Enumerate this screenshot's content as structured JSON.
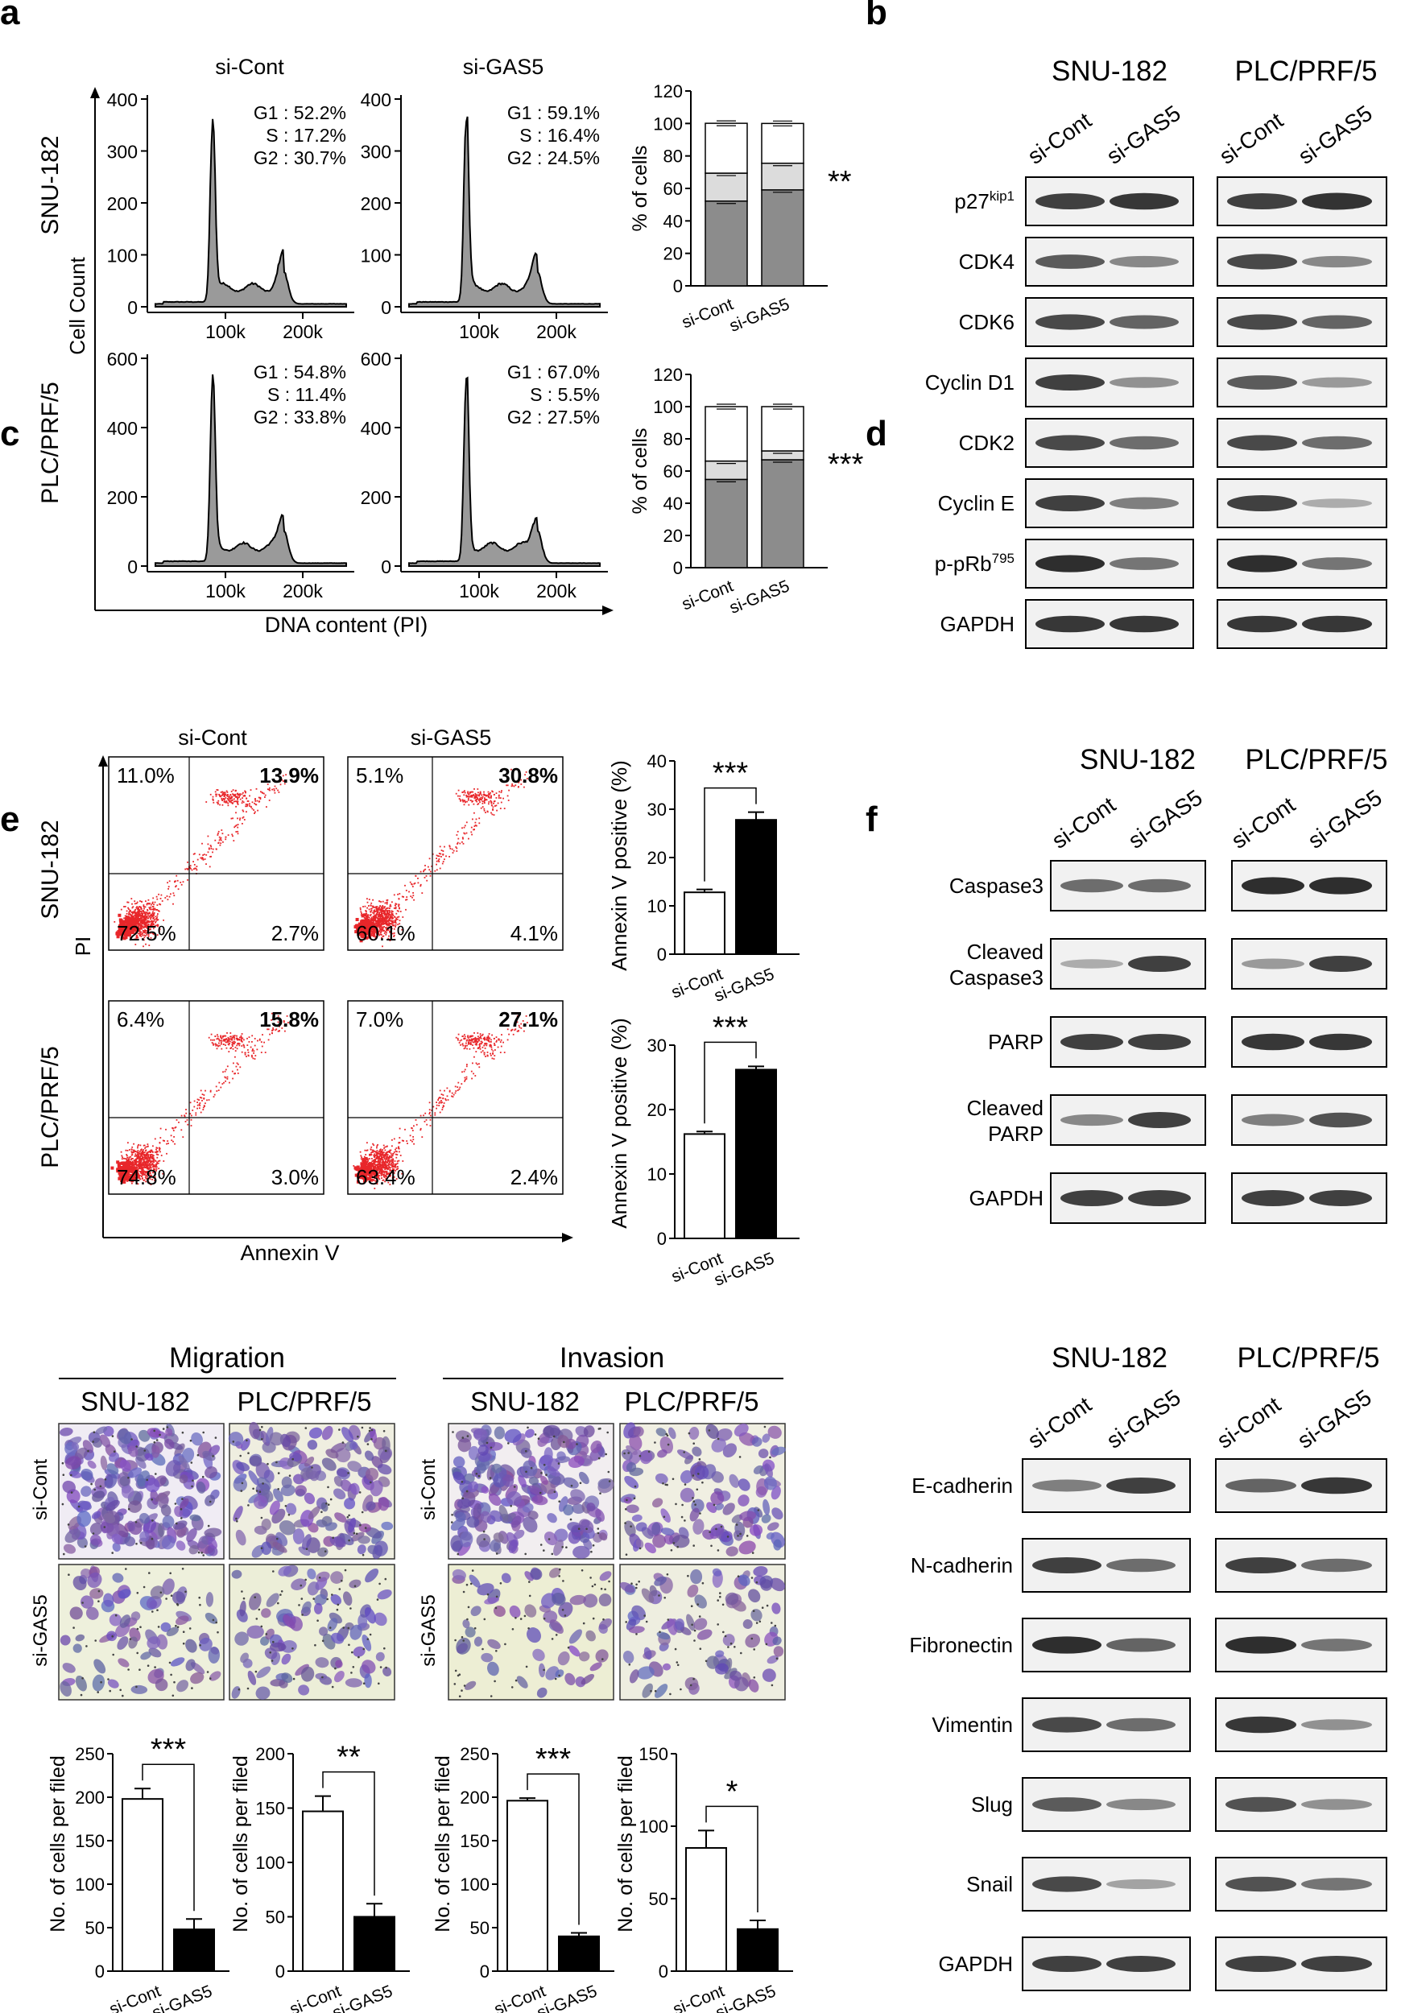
{
  "panel_letters": {
    "a": "a",
    "b": "b",
    "c": "c",
    "d": "d",
    "e": "e",
    "f": "f"
  },
  "groups": {
    "cont": "si-Cont",
    "gas5": "si-GAS5"
  },
  "lines": {
    "snu": "SNU-182",
    "plc": "PLC/PRF/5"
  },
  "colors": {
    "hist_fill": "#9a9a9a",
    "bar_g1": "#8c8c8c",
    "bar_s": "#dcdcdc",
    "bar_g2": "#ffffff",
    "dot_red": "#e8262a",
    "bar_black": "#000000"
  },
  "panel_a": {
    "xlabel": "DNA content (PI)",
    "ylabel": "Cell Count",
    "bar_ylabel": "% of cells",
    "x_ticks": [
      "100k",
      "200k"
    ],
    "rows": [
      {
        "line": "SNU-182",
        "y_ticks": [
          "400",
          "300",
          "200",
          "100",
          "0"
        ],
        "cont_stats": {
          "g1": "G1 : 52.2%",
          "s": "S : 17.2%",
          "g2": "G2 : 30.7%"
        },
        "gas5_stats": {
          "g1": "G1 : 59.1%",
          "s": "S : 16.4%",
          "g2": "G2 : 24.5%"
        },
        "sig": "**"
      },
      {
        "line": "PLC/PRF/5",
        "y_ticks": [
          "600",
          "400",
          "200",
          "0"
        ],
        "cont_stats": {
          "g1": "G1 : 54.8%",
          "s": "S : 11.4%",
          "g2": "G2 : 33.8%"
        },
        "gas5_stats": {
          "g1": "G1 : 67.0%",
          "s": "S : 5.5%",
          "g2": "G2 : 27.5%"
        },
        "sig": "***"
      }
    ]
  },
  "panel_b": {
    "proteins": [
      "p27kip1",
      "CDK4",
      "CDK6",
      "Cyclin D1",
      "CDK2",
      "Cyclin E",
      "p-pRb795",
      "GAPDH"
    ]
  },
  "panel_c": {
    "xlabel": "Annexin V",
    "ylabel": "PI",
    "bar_ylabel": "Annexin V positive (%)",
    "sig": "***",
    "rows": [
      {
        "line": "SNU-182",
        "cont": {
          "ul": "11.0%",
          "ur": "13.9%",
          "ll": "72.5%",
          "lr": "2.7%"
        },
        "gas5": {
          "ul": "5.1%",
          "ur": "30.8%",
          "ll": "60.1%",
          "lr": "4.1%"
        }
      },
      {
        "line": "PLC/PRF/5",
        "cont": {
          "ul": "6.4%",
          "ur": "15.8%",
          "ll": "74.8%",
          "lr": "3.0%"
        },
        "gas5": {
          "ul": "7.0%",
          "ur": "27.1%",
          "ll": "63.4%",
          "lr": "2.4%"
        }
      }
    ]
  },
  "panel_d": {
    "proteins": [
      "Caspase3",
      "Cleaved Caspase3",
      "PARP",
      "Cleaved PARP",
      "GAPDH"
    ]
  },
  "panel_e": {
    "migration": "Migration",
    "invasion": "Invasion",
    "bar_ylabel": "No. of cells per filed"
  },
  "panel_f": {
    "proteins": [
      "E-cadherin",
      "N-cadherin",
      "Fibronectin",
      "Vimentin",
      "Slug",
      "Snail",
      "GAPDH"
    ]
  },
  "chart_data": [
    {
      "type": "bar",
      "stacked": true,
      "title": "",
      "panel": "a",
      "line": "SNU-182",
      "ylabel": "% of cells",
      "categories": [
        "si-Cont",
        "si-GAS5"
      ],
      "ylim": [
        0,
        120
      ],
      "y_ticks": [
        0,
        20,
        40,
        60,
        80,
        100,
        120
      ],
      "series": [
        {
          "name": "G1",
          "values": [
            52.2,
            59.1
          ]
        },
        {
          "name": "S",
          "values": [
            17.2,
            16.4
          ]
        },
        {
          "name": "G2",
          "values": [
            30.7,
            24.5
          ]
        }
      ],
      "significance": "**"
    },
    {
      "type": "bar",
      "stacked": true,
      "title": "",
      "panel": "a",
      "line": "PLC/PRF/5",
      "ylabel": "% of cells",
      "categories": [
        "si-Cont",
        "si-GAS5"
      ],
      "ylim": [
        0,
        120
      ],
      "y_ticks": [
        0,
        20,
        40,
        60,
        80,
        100,
        120
      ],
      "series": [
        {
          "name": "G1",
          "values": [
            54.8,
            67.0
          ]
        },
        {
          "name": "S",
          "values": [
            11.4,
            5.5
          ]
        },
        {
          "name": "G2",
          "values": [
            33.8,
            27.5
          ]
        }
      ],
      "significance": "***"
    },
    {
      "type": "bar",
      "panel": "c",
      "line": "SNU-182",
      "ylabel": "Annexin V positive (%)",
      "categories": [
        "si-Cont",
        "si-GAS5"
      ],
      "values": [
        12.8,
        27.8
      ],
      "errors": [
        0.6,
        1.6
      ],
      "ylim": [
        0,
        40
      ],
      "y_ticks": [
        0,
        10,
        20,
        30,
        40
      ],
      "significance": "***"
    },
    {
      "type": "bar",
      "panel": "c",
      "line": "PLC/PRF/5",
      "ylabel": "Annexin V positive (%)",
      "categories": [
        "si-Cont",
        "si-GAS5"
      ],
      "values": [
        16.2,
        26.2
      ],
      "errors": [
        0.4,
        0.5
      ],
      "ylim": [
        0,
        30
      ],
      "y_ticks": [
        0,
        10,
        20,
        30
      ],
      "significance": "***"
    },
    {
      "type": "bar",
      "panel": "e",
      "group": "Migration",
      "line": "SNU-182",
      "ylabel": "No. of cells per filed",
      "categories": [
        "si-Cont",
        "si-GAS5"
      ],
      "values": [
        198,
        48
      ],
      "errors": [
        12,
        12
      ],
      "ylim": [
        0,
        250
      ],
      "y_ticks": [
        0,
        50,
        100,
        150,
        200,
        250
      ],
      "significance": "***"
    },
    {
      "type": "bar",
      "panel": "e",
      "group": "Migration",
      "line": "PLC/PRF/5",
      "ylabel": "No. of cells per filed",
      "categories": [
        "si-Cont",
        "si-GAS5"
      ],
      "values": [
        147,
        50
      ],
      "errors": [
        14,
        12
      ],
      "ylim": [
        0,
        200
      ],
      "y_ticks": [
        0,
        50,
        100,
        150,
        200
      ],
      "significance": "**"
    },
    {
      "type": "bar",
      "panel": "e",
      "group": "Invasion",
      "line": "SNU-182",
      "ylabel": "No. of cells per filed",
      "categories": [
        "si-Cont",
        "si-GAS5"
      ],
      "values": [
        196,
        40
      ],
      "errors": [
        3,
        4
      ],
      "ylim": [
        0,
        250
      ],
      "y_ticks": [
        0,
        50,
        100,
        150,
        200,
        250
      ],
      "significance": "***"
    },
    {
      "type": "bar",
      "panel": "e",
      "group": "Invasion",
      "line": "PLC/PRF/5",
      "ylabel": "No. of cells per filed",
      "categories": [
        "si-Cont",
        "si-GAS5"
      ],
      "values": [
        85,
        29
      ],
      "errors": [
        12,
        6
      ],
      "ylim": [
        0,
        150
      ],
      "y_ticks": [
        0,
        50,
        100,
        150
      ],
      "significance": "*"
    }
  ]
}
